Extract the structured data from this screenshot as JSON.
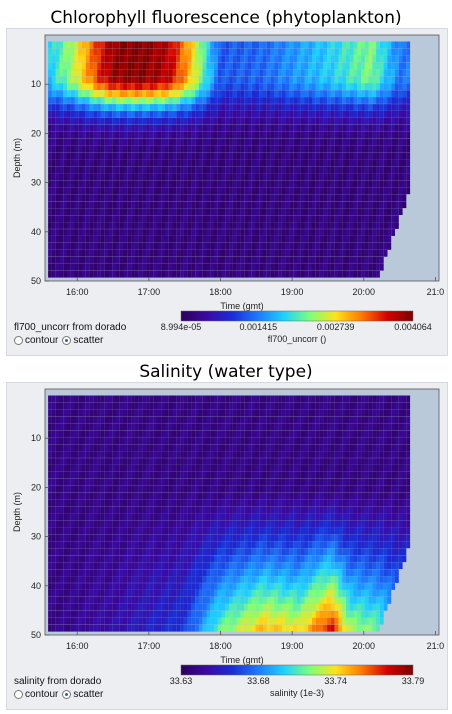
{
  "colors": {
    "colormap": [
      "#2e005a",
      "#3b0aa3",
      "#1a2dd6",
      "#1e7bff",
      "#1fd1ff",
      "#7dff7a",
      "#ffe21a",
      "#ff7a00",
      "#d40000",
      "#7a0000"
    ],
    "background": "#b9c9da"
  },
  "chart_data": [
    {
      "type": "scatter",
      "title": "Chlorophyll fluorescence (phytoplankton)",
      "xlabel": "Time (gmt)",
      "ylabel": "Depth (m)",
      "x_ticks": [
        "16:00",
        "17:00",
        "18:00",
        "19:00",
        "20:00",
        "21:0"
      ],
      "x_tick_hours": [
        16,
        17,
        18,
        19,
        20,
        21
      ],
      "xlim_hours": [
        15.55,
        21.05
      ],
      "y_ticks": [
        "10",
        "20",
        "30",
        "40",
        "50"
      ],
      "y_tick_values": [
        10,
        20,
        30,
        40,
        50
      ],
      "ylim": [
        0,
        50
      ],
      "source_label": "fl700_uncorr from dorado",
      "colorbar": {
        "label": "fl700_uncorr ()",
        "ticks": [
          "8.994e-05",
          "0.001415",
          "0.002739",
          "0.004064"
        ],
        "min": 8.994e-05,
        "max": 0.004064
      },
      "display_mode": {
        "options": [
          "contour",
          "scatter"
        ],
        "selected": "scatter"
      },
      "series": [
        {
          "name": "",
          "x_hours": [
            15.6,
            15.95,
            16.3,
            16.5,
            16.7,
            16.9,
            17.1,
            17.3,
            17.55,
            18.0,
            18.6,
            19.1,
            19.6,
            20.1,
            20.5
          ],
          "mean_value_upper": [
            0.0018,
            0.0025,
            0.0035,
            0.0039,
            0.004,
            0.004,
            0.0039,
            0.0037,
            0.003,
            0.0012,
            0.0013,
            0.0016,
            0.0019,
            0.0023,
            0.0014
          ],
          "deep_value": 0.0003
        }
      ]
    },
    {
      "type": "scatter",
      "title": "Salinity (water type)",
      "xlabel": "Time (gmt)",
      "ylabel": "Depth (m)",
      "x_ticks": [
        "16:00",
        "17:00",
        "18:00",
        "19:00",
        "20:00",
        "21:0"
      ],
      "x_tick_hours": [
        16,
        17,
        18,
        19,
        20,
        21
      ],
      "xlim_hours": [
        15.55,
        21.05
      ],
      "y_ticks": [
        "10",
        "20",
        "30",
        "40",
        "50"
      ],
      "y_tick_values": [
        10,
        20,
        30,
        40,
        50
      ],
      "ylim": [
        0,
        50
      ],
      "source_label": "salinity from dorado",
      "colorbar": {
        "label": "salinity (1e-3)",
        "ticks": [
          "33.63",
          "33.68",
          "33.74",
          "33.79"
        ],
        "min": 33.63,
        "max": 33.79
      },
      "display_mode": {
        "options": [
          "contour",
          "scatter"
        ],
        "selected": "scatter"
      },
      "series": [
        {
          "name": "",
          "x_hours": [
            15.6,
            16.5,
            17.5,
            18.0,
            18.6,
            19.1,
            19.55,
            19.8,
            20.2,
            20.5
          ],
          "surface_value": 33.64,
          "deep_value_at_50m": [
            33.64,
            33.65,
            33.67,
            33.72,
            33.75,
            33.74,
            33.78,
            33.73,
            33.72,
            33.7
          ]
        }
      ]
    }
  ]
}
